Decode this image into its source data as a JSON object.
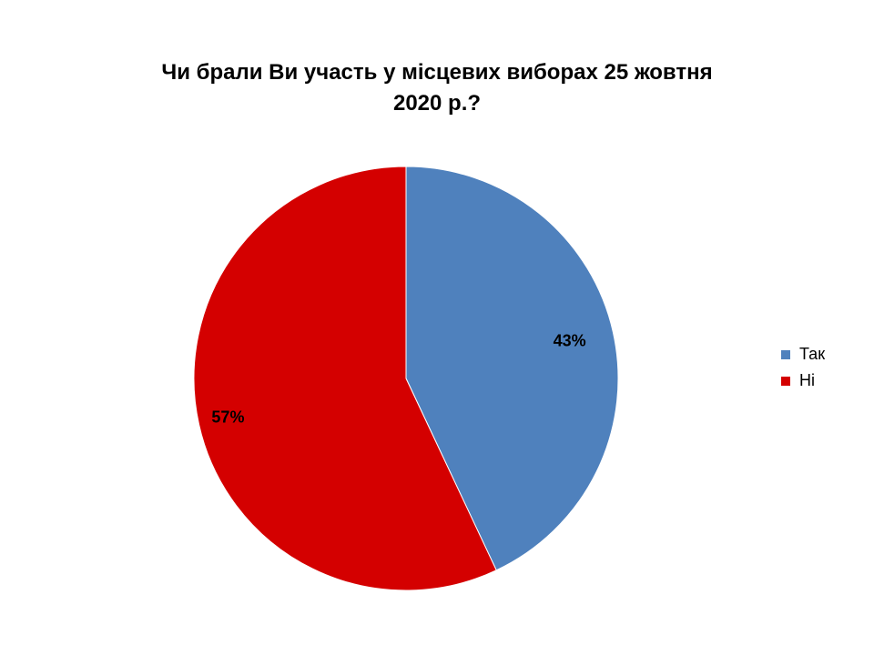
{
  "chart_data": {
    "type": "pie",
    "title_lines": [
      "Чи брали Ви участь у місцевих виборах 25 жовтня",
      "2020 р.?"
    ],
    "categories": [
      "Так",
      "Ні"
    ],
    "values": [
      43,
      57
    ],
    "data_labels": [
      "43%",
      "57%"
    ],
    "colors": [
      "#4f81bd",
      "#d40000"
    ],
    "legend_position": "right",
    "start_angle": "12 o'clock, clockwise"
  }
}
